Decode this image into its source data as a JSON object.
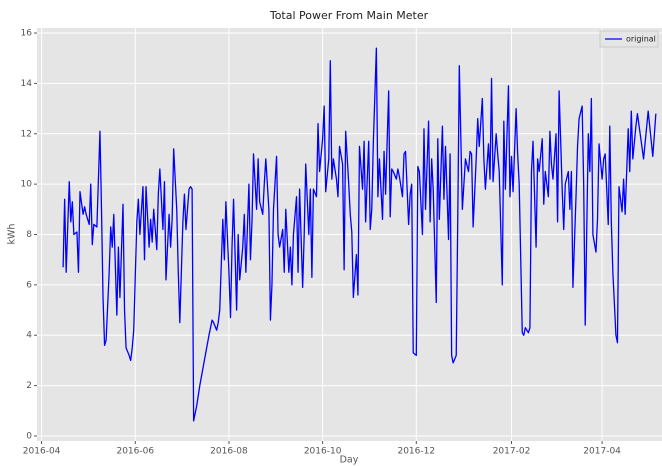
{
  "chart_data": {
    "type": "line",
    "title": "Total Power From Main Meter",
    "x_label": "Day",
    "y_label": "kWh",
    "x": [
      14,
      15,
      16,
      18,
      19,
      20,
      21,
      23,
      24,
      25,
      27,
      28,
      29,
      31,
      32,
      33,
      34,
      36,
      38,
      39,
      40,
      41,
      42,
      44,
      45,
      46,
      47,
      49,
      50,
      51,
      53,
      54,
      55,
      57,
      58,
      59,
      60,
      62,
      63,
      64,
      66,
      67,
      68,
      70,
      71,
      72,
      73,
      75,
      76,
      77,
      79,
      80,
      81,
      83,
      84,
      85,
      86,
      88,
      89,
      90,
      92,
      93,
      94,
      96,
      97,
      98,
      99,
      101,
      103,
      106,
      109,
      111,
      112,
      114,
      115,
      116,
      118,
      119,
      120,
      122,
      123,
      124,
      125,
      127,
      128,
      129,
      131,
      132,
      133,
      135,
      136,
      137,
      138,
      140,
      141,
      142,
      144,
      145,
      146,
      148,
      149,
      150,
      151,
      153,
      154,
      155,
      157,
      158,
      159,
      161,
      162,
      163,
      164,
      166,
      167,
      168,
      170,
      171,
      172,
      174,
      175,
      176,
      177,
      179,
      180,
      181,
      183,
      184,
      185,
      187,
      188,
      189,
      190,
      192,
      193,
      194,
      196,
      197,
      198,
      200,
      201,
      202,
      203,
      205,
      206,
      207,
      209,
      210,
      211,
      213,
      214,
      215,
      216,
      218,
      219,
      220,
      222,
      223,
      224,
      226,
      227,
      228,
      229,
      231,
      232,
      233,
      235,
      236,
      237,
      239,
      240,
      241,
      242,
      244,
      245,
      246,
      248,
      249,
      250,
      252,
      253,
      254,
      255,
      257,
      258,
      259,
      261,
      262,
      263,
      265,
      266,
      267,
      268,
      270,
      271,
      272,
      274,
      275,
      276,
      278,
      279,
      280,
      281,
      283,
      284,
      285,
      287,
      288,
      289,
      291,
      292,
      293,
      294,
      296,
      297,
      298,
      300,
      301,
      302,
      304,
      305,
      306,
      307,
      309,
      310,
      311,
      313,
      314,
      315,
      317,
      318,
      319,
      320,
      322,
      323,
      324,
      326,
      327,
      328,
      330,
      331,
      332,
      333,
      335,
      336,
      337,
      339,
      340,
      341,
      343,
      344,
      345,
      346,
      348,
      349,
      350,
      352,
      353,
      354,
      356,
      357,
      358,
      359,
      361,
      362,
      363,
      365,
      366,
      367,
      369,
      370,
      371,
      372,
      374,
      375,
      376,
      378,
      379,
      380,
      382,
      383,
      384,
      385,
      387,
      388,
      392,
      395,
      398,
      400
    ],
    "series": [
      {
        "name": "original",
        "color": "#0000ff",
        "values": [
          6.7,
          9.4,
          6.5,
          10.1,
          8.5,
          9.3,
          8.0,
          8.1,
          6.5,
          9.7,
          8.8,
          9.1,
          8.8,
          8.4,
          10.0,
          7.6,
          8.4,
          8.3,
          12.1,
          9.0,
          5.5,
          3.6,
          3.8,
          6.5,
          8.3,
          7.5,
          8.8,
          4.8,
          7.5,
          5.5,
          9.2,
          5.0,
          3.5,
          3.2,
          3.0,
          3.5,
          4.2,
          8.5,
          9.4,
          8.0,
          9.9,
          7.0,
          9.9,
          7.5,
          8.6,
          7.7,
          9.0,
          7.4,
          9.6,
          10.6,
          8.2,
          10.1,
          6.2,
          8.8,
          7.5,
          8.6,
          11.4,
          9.0,
          6.5,
          4.5,
          8.5,
          9.6,
          8.2,
          9.8,
          9.9,
          9.8,
          0.6,
          1.2,
          2.0,
          3.0,
          4.0,
          4.6,
          4.5,
          4.2,
          4.5,
          5.0,
          8.6,
          7.0,
          9.3,
          6.5,
          4.7,
          7.5,
          9.4,
          5.0,
          8.0,
          6.2,
          7.5,
          8.8,
          6.5,
          10.0,
          7.0,
          8.5,
          11.2,
          9.0,
          11.0,
          9.3,
          8.8,
          10.0,
          11.0,
          9.0,
          4.6,
          6.0,
          9.0,
          11.1,
          8.0,
          7.5,
          8.2,
          6.5,
          9.0,
          6.5,
          7.5,
          6.0,
          8.0,
          9.5,
          6.5,
          9.8,
          5.9,
          8.0,
          10.8,
          8.0,
          9.8,
          6.3,
          9.8,
          9.5,
          12.4,
          10.5,
          11.8,
          13.1,
          9.7,
          11.0,
          14.9,
          10.2,
          11.0,
          10.2,
          9.5,
          11.5,
          10.8,
          6.6,
          12.1,
          10.0,
          8.8,
          8.1,
          5.5,
          7.2,
          5.6,
          11.5,
          9.8,
          11.7,
          8.5,
          11.7,
          8.2,
          9.0,
          11.6,
          15.4,
          9.5,
          11.0,
          8.6,
          11.3,
          9.6,
          13.7,
          8.7,
          10.6,
          10.5,
          10.2,
          10.6,
          10.3,
          9.5,
          11.2,
          11.3,
          8.4,
          9.6,
          10.0,
          3.3,
          3.2,
          10.7,
          10.5,
          8.0,
          12.2,
          9.0,
          12.5,
          8.5,
          11.0,
          9.8,
          5.3,
          11.8,
          8.6,
          12.3,
          9.4,
          11.5,
          7.8,
          11.2,
          3.2,
          2.9,
          3.2,
          8.6,
          14.7,
          9.0,
          10.0,
          11.0,
          10.5,
          11.3,
          11.2,
          8.3,
          11.0,
          12.6,
          11.5,
          13.4,
          11.0,
          9.8,
          11.6,
          10.2,
          14.2,
          10.1,
          12.0,
          11.2,
          10.5,
          6.0,
          12.5,
          9.8,
          13.9,
          9.5,
          11.1,
          9.7,
          13.0,
          11.2,
          10.0,
          4.1,
          4.0,
          4.3,
          4.1,
          4.3,
          10.5,
          11.7,
          7.5,
          11.0,
          10.5,
          11.8,
          9.2,
          10.5,
          9.5,
          12.1,
          10.8,
          10.2,
          12.0,
          8.5,
          13.7,
          9.8,
          8.2,
          10.0,
          10.5,
          9.0,
          10.5,
          5.9,
          9.5,
          11.5,
          12.6,
          13.1,
          10.0,
          4.4,
          12.0,
          10.5,
          13.4,
          8.0,
          7.3,
          8.6,
          11.6,
          10.2,
          11.0,
          11.2,
          8.4,
          12.3,
          8.5,
          6.5,
          4.0,
          3.7,
          9.9,
          8.9,
          10.2,
          8.8,
          12.2,
          10.5,
          12.9,
          11.0,
          12.3,
          12.8,
          11.0,
          12.9,
          11.1,
          12.8
        ]
      }
    ],
    "xlim": [
      -3,
      404
    ],
    "xticks": [
      {
        "value": 0,
        "label": "2016-04"
      },
      {
        "value": 61,
        "label": "2016-06"
      },
      {
        "value": 122,
        "label": "2016-08"
      },
      {
        "value": 183,
        "label": "2016-10"
      },
      {
        "value": 244,
        "label": "2016-12"
      },
      {
        "value": 306,
        "label": "2017-02"
      },
      {
        "value": 365,
        "label": "2017-04"
      }
    ],
    "ylim": [
      -0.2,
      16.2
    ],
    "yticks": [
      0,
      2,
      4,
      6,
      8,
      10,
      12,
      14,
      16
    ],
    "grid": true,
    "legend": "upper right"
  }
}
